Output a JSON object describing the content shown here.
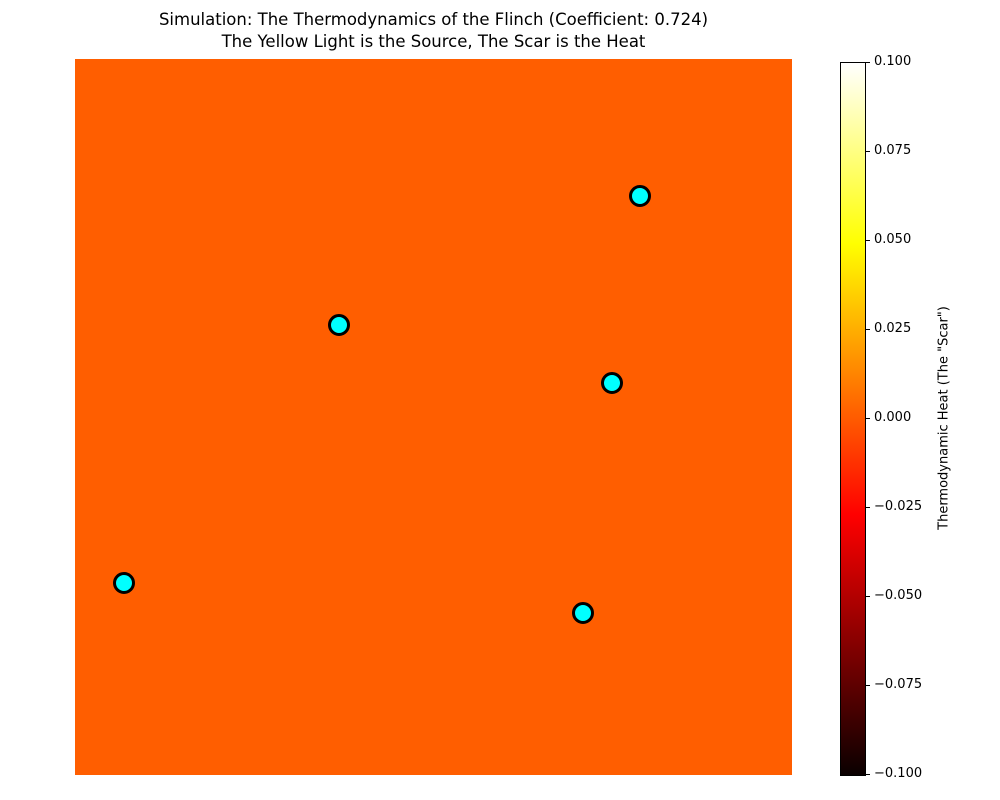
{
  "figure": {
    "title": "Simulation: The Thermodynamics of the Flinch (Coefficient: 0.724)",
    "subtitle": "The Yellow Light is the Source, The Scar is the Heat"
  },
  "chart_data": {
    "type": "scatter",
    "title": "Simulation: The Thermodynamics of the Flinch (Coefficient: 0.724)",
    "subtitle": "The Yellow Light is the Source, The Scar is the Heat",
    "axes_visible": false,
    "plot_background": {
      "kind": "uniform-heatmap",
      "colormap": "hot",
      "value": 0.0,
      "color": "#FF5E00"
    },
    "points": {
      "marker": "circle",
      "fill": "#00FFFF",
      "edge": "#000000",
      "coords": "axes-fraction (x: left to right, y: bottom to top)",
      "xy": [
        [
          0.788,
          0.809
        ],
        [
          0.368,
          0.628
        ],
        [
          0.749,
          0.548
        ],
        [
          0.068,
          0.268
        ],
        [
          0.709,
          0.226
        ]
      ]
    },
    "colorbar": {
      "label": "Thermodynamic Heat (The \"Scar\")",
      "range": [
        -0.1,
        0.1
      ],
      "colormap": "hot",
      "tick_labels": [
        "0.100",
        "0.075",
        "0.050",
        "0.025",
        "0.000",
        "−0.025",
        "−0.050",
        "−0.075",
        "−0.100"
      ],
      "stops": [
        {
          "pos": 0.0,
          "color": "#0A0000"
        },
        {
          "pos": 0.365,
          "color": "#FF0000"
        },
        {
          "pos": 0.746,
          "color": "#FFFF00"
        },
        {
          "pos": 1.0,
          "color": "#FFFFFF"
        }
      ]
    }
  }
}
